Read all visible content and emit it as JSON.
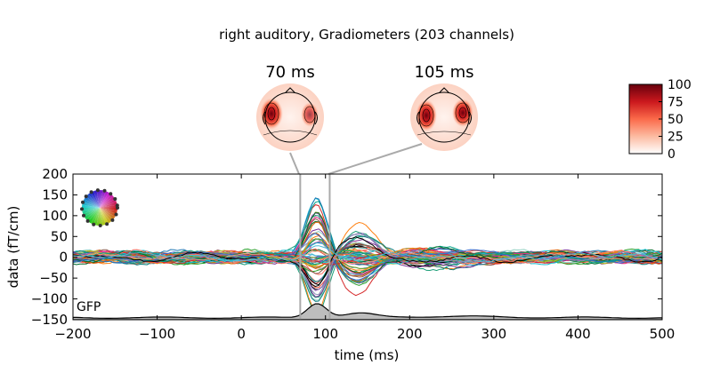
{
  "title": "right auditory, Gradiometers (203 channels)",
  "topomaps": [
    {
      "label": "70 ms",
      "time_ms": 70
    },
    {
      "label": "105 ms",
      "time_ms": 105
    }
  ],
  "colorbar": {
    "ticks": [
      "100",
      "75",
      "50",
      "25",
      "0"
    ],
    "range": [
      0,
      100
    ],
    "colormap": [
      "#ffffff",
      "#fcbba1",
      "#fb6a4a",
      "#cb181d",
      "#67000d"
    ]
  },
  "gfp_label": "GFP",
  "chart_data": {
    "type": "line",
    "xlabel": "time (ms)",
    "ylabel": "data (fT/cm)",
    "xlim": [
      -200,
      500
    ],
    "ylim": [
      -150,
      200
    ],
    "xticks": [
      "−200",
      "−100",
      "0",
      "100",
      "200",
      "300",
      "400",
      "500"
    ],
    "yticks": [
      "200",
      "150",
      "100",
      "50",
      "0",
      "−50",
      "−100",
      "−150"
    ],
    "grid": false,
    "series_summary": {
      "channels": 203,
      "peak_time_ms": 90,
      "peak_max": 155,
      "peak_min": -75
    },
    "markers_ms": [
      70,
      105
    ],
    "gfp": {
      "baseline": -145,
      "peak_time_ms": 90,
      "peak_value": -110
    }
  }
}
